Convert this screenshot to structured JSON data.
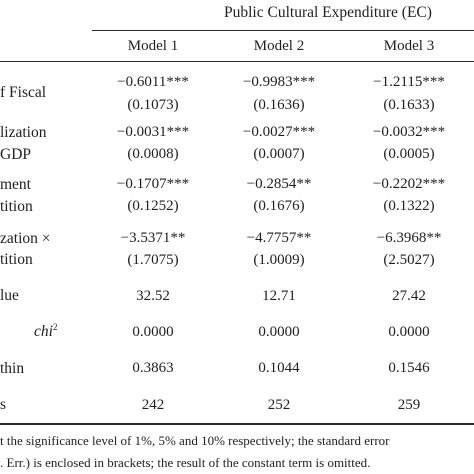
{
  "table": {
    "group_header": "Public Cultural Expenditure (EC)",
    "model_headers": [
      "Model 1",
      "Model 2",
      "Model 3"
    ],
    "rows": [
      {
        "label": [
          "f Fiscal"
        ],
        "coef": [
          "−0.6011***",
          "−0.9983***",
          "−1.2115***"
        ],
        "se": [
          "(0.1073)",
          "(0.1636)",
          "(0.1633)"
        ]
      },
      {
        "label": [
          "lization",
          "GDP"
        ],
        "coef": [
          "−0.0031***",
          "−0.0027***",
          "−0.0032***"
        ],
        "se": [
          "(0.0008)",
          "(0.0007)",
          "(0.0005)"
        ]
      },
      {
        "label": [
          "ment",
          "tition"
        ],
        "coef": [
          "−0.1707***",
          "−0.2854**",
          "−0.2202***"
        ],
        "se": [
          "(0.1252)",
          "(0.1676)",
          "(0.1322)"
        ]
      },
      {
        "label": [
          "zation ×",
          "tition"
        ],
        "coef": [
          "−3.5371**",
          "−4.7757**",
          "−6.3968**"
        ],
        "se": [
          "(1.7075)",
          "(1.0009)",
          "(2.5027)"
        ]
      }
    ],
    "stats": [
      {
        "label": "lue",
        "values": [
          "32.52",
          "12.71",
          "27.42"
        ]
      },
      {
        "label": "chi",
        "sup": "2",
        "values": [
          "0.0000",
          "0.0000",
          "0.0000"
        ]
      },
      {
        "label": "thin",
        "values": [
          "0.3863",
          "0.1044",
          "0.1546"
        ]
      },
      {
        "label": "s",
        "values": [
          "242",
          "252",
          "259"
        ]
      }
    ]
  },
  "footnote": [
    "t the significance level of 1%, 5% and 10% respectively; the standard error",
    ". Err.) is enclosed in brackets; the result of the constant term is omitted."
  ]
}
